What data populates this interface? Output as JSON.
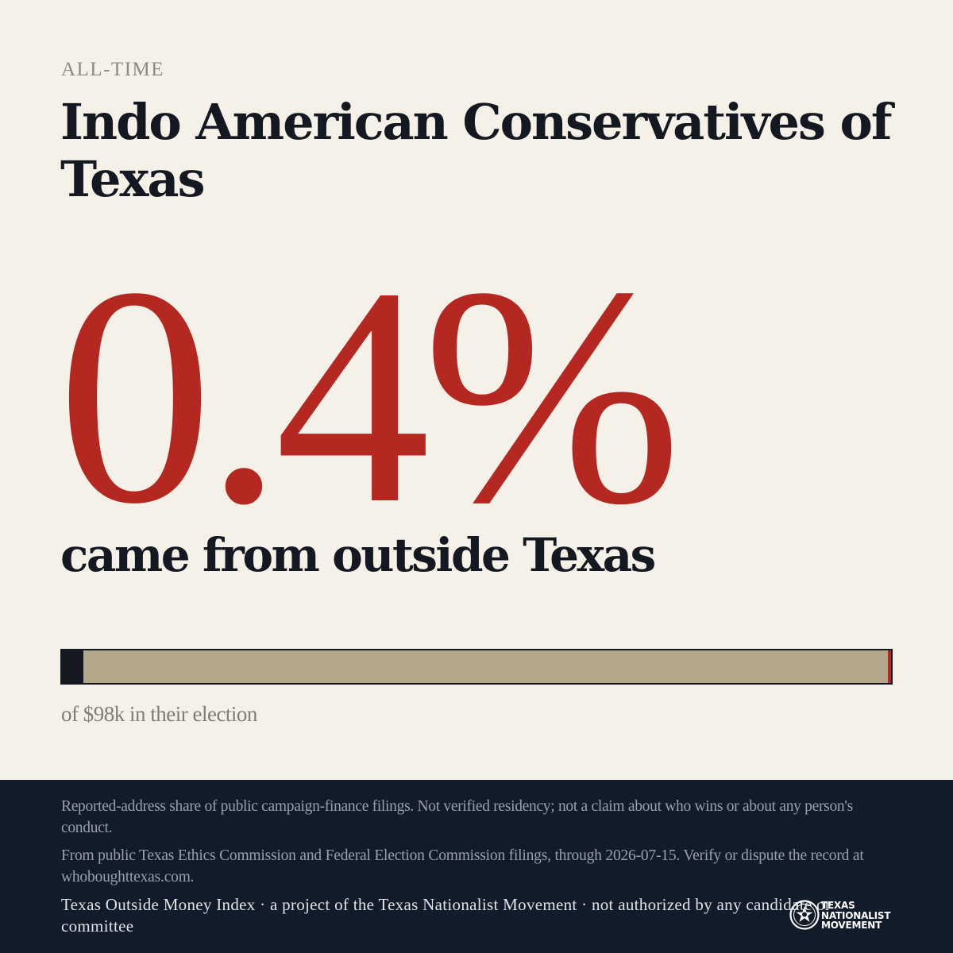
{
  "header": {
    "eyebrow": "ALL-TIME",
    "title": "Indo American Conservatives of Texas"
  },
  "stat": {
    "value": "0.4%",
    "caption": "came from outside Texas"
  },
  "share_bar": {
    "outside_share_percent": 0.4,
    "caption": "of $98k in their election",
    "colors": {
      "outside": "#b52721",
      "remainder": "#b2a68b",
      "frame": "#141821"
    }
  },
  "footer": {
    "disclaimer": "Reported-address share of public campaign-finance filings. Not verified residency; not a claim about who wins or about any person's conduct.",
    "source": "From public Texas Ethics Commission and Federal Election Commission filings, through 2026-07-15. Verify or dispute the record at whoboughttexas.com.",
    "project": "Texas Outside Money Index · a project of the Texas Nationalist Movement · not authorized by any candidate or committee",
    "logo": {
      "icon": "star-seal-icon",
      "line1": "TEXAS",
      "line2": "NATIONALIST",
      "line3": "MOVEMENT"
    }
  },
  "colors": {
    "background": "#f5f0e8",
    "accent": "#b52721",
    "ink": "#141821",
    "footer_bg": "#111b2a"
  }
}
